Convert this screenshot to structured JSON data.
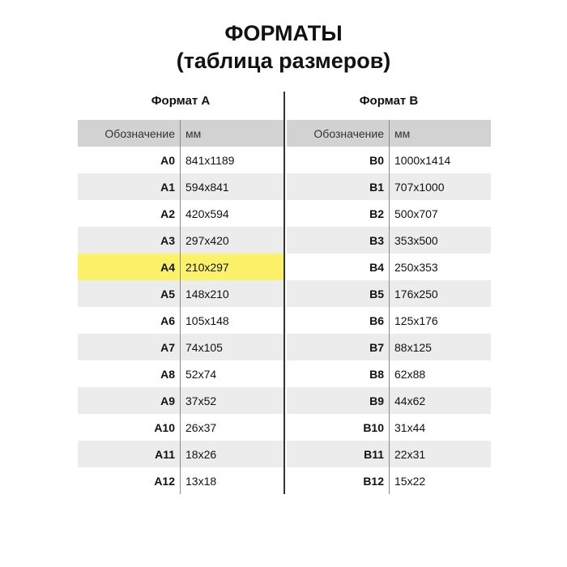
{
  "title": {
    "line1": "ФОРМАТЫ",
    "line2": "(таблица размеров)"
  },
  "colors": {
    "header": "#d2d2d2",
    "stripe": "#ececec",
    "highlight": "#fbf26a"
  },
  "tables": [
    {
      "heading": "Формат A",
      "col1": "Обозначение",
      "col2": "мм",
      "highlight": "A4",
      "rows": [
        [
          "A0",
          "841x1189"
        ],
        [
          "A1",
          "594x841"
        ],
        [
          "A2",
          "420x594"
        ],
        [
          "A3",
          "297x420"
        ],
        [
          "A4",
          "210x297"
        ],
        [
          "A5",
          "148x210"
        ],
        [
          "A6",
          "105x148"
        ],
        [
          "A7",
          "74x105"
        ],
        [
          "A8",
          "52x74"
        ],
        [
          "A9",
          "37x52"
        ],
        [
          "A10",
          "26x37"
        ],
        [
          "A11",
          "18x26"
        ],
        [
          "A12",
          "13x18"
        ]
      ]
    },
    {
      "heading": "Формат B",
      "col1": "Обозначение",
      "col2": "мм",
      "highlight": null,
      "rows": [
        [
          "B0",
          "1000x1414"
        ],
        [
          "B1",
          "707x1000"
        ],
        [
          "B2",
          "500x707"
        ],
        [
          "B3",
          "353x500"
        ],
        [
          "B4",
          "250x353"
        ],
        [
          "B5",
          "176x250"
        ],
        [
          "B6",
          "125x176"
        ],
        [
          "B7",
          "88x125"
        ],
        [
          "B8",
          "62x88"
        ],
        [
          "B9",
          "44x62"
        ],
        [
          "B10",
          "31x44"
        ],
        [
          "B11",
          "22x31"
        ],
        [
          "B12",
          "15x22"
        ]
      ]
    }
  ]
}
